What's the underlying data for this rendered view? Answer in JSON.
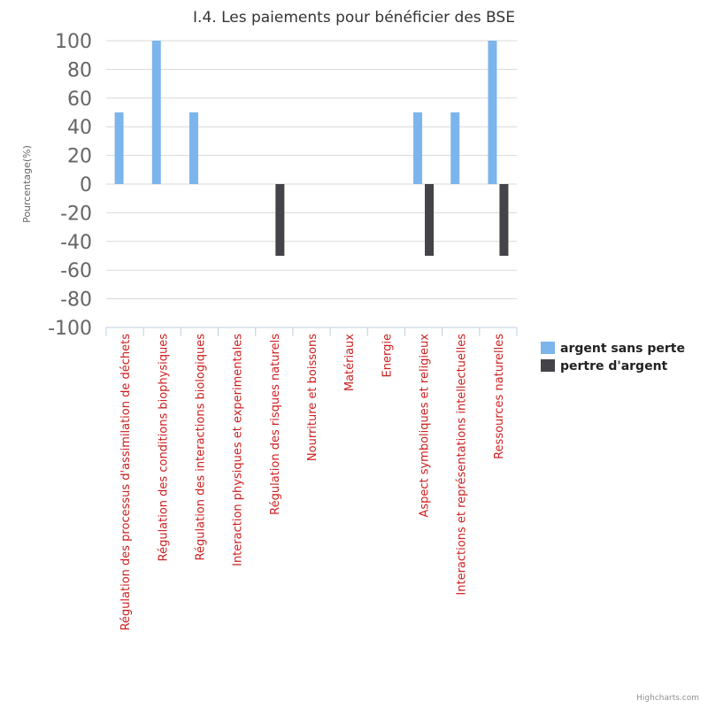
{
  "chart_data": {
    "type": "bar",
    "title": "I.4. Les paiements pour bénéficier des BSE",
    "ylabel": "Pourcentage(%)",
    "xlabel": "",
    "ylim": [
      -100,
      100
    ],
    "yticks": [
      100,
      80,
      60,
      40,
      20,
      0,
      -20,
      -40,
      -60,
      -80,
      -100
    ],
    "grid": true,
    "legend_position": "right",
    "categories": [
      "Régulation des processus d'assimilation de déchets",
      "Régulation des conditions biophysiques",
      "Régulation des interactions biologiques",
      "Interaction physiques et experimentales",
      "Régulation des risques naturels",
      "Nourriture et boissons",
      "Matériaux",
      "Energie",
      "Aspect symboliques et religieux",
      "Interactions et représentations intellectuelles",
      "Ressources naturelles"
    ],
    "series": [
      {
        "name": "argent sans perte",
        "color": "#7cb5ec",
        "values": [
          50,
          100,
          50,
          0,
          0,
          0,
          0,
          0,
          50,
          50,
          100
        ]
      },
      {
        "name": "pertre d'argent",
        "color": "#434348",
        "values": [
          0,
          0,
          0,
          0,
          -50,
          0,
          0,
          0,
          -50,
          0,
          -50
        ]
      }
    ]
  },
  "colors": {
    "category_label": "#cc1f1f",
    "axis_tick_label": "#666666",
    "grid": "#d8d8d8"
  },
  "credits": "Highcharts.com"
}
